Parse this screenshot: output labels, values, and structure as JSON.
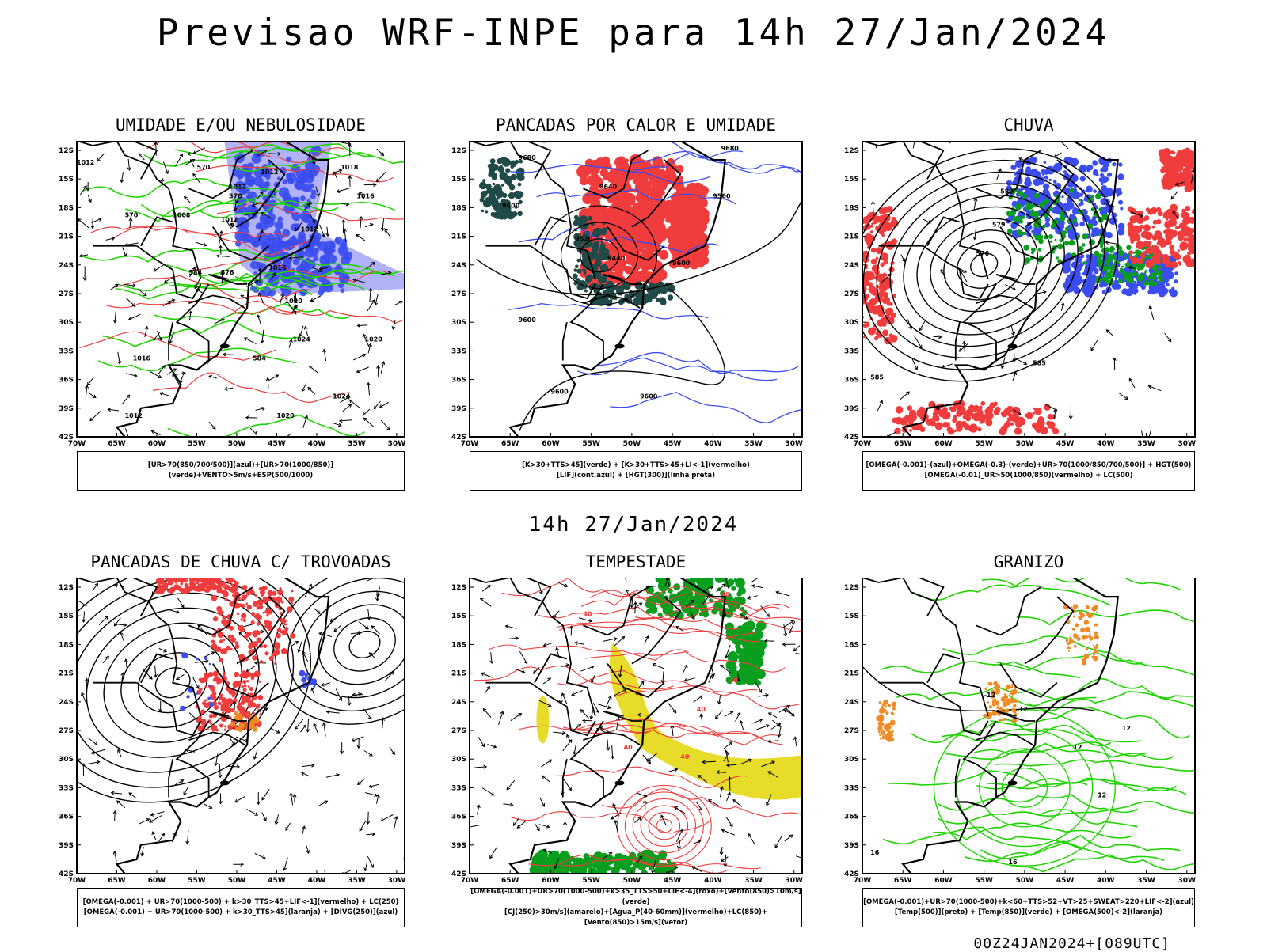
{
  "title": "Previsao WRF-INPE  para 14h 27/Jan/2024",
  "middle_date": "14h 27/Jan/2024",
  "footer": "00Z24JAN2024+[089UTC]",
  "axes": {
    "lat_labels": [
      "12S",
      "15S",
      "18S",
      "21S",
      "24S",
      "27S",
      "30S",
      "33S",
      "36S",
      "39S",
      "42S"
    ],
    "lon_labels": [
      "70W",
      "65W",
      "60W",
      "55W",
      "50W",
      "45W",
      "40W",
      "35W",
      "30W"
    ]
  },
  "colors": {
    "blue": "#3b4cf0",
    "light_blue": "#a9aaf6",
    "green": "#1fd400",
    "dark_green": "#0a9e1e",
    "red": "#f03c3c",
    "dark_teal": "#1f4a48",
    "yellow": "#e8dc2a",
    "orange": "#f08a24",
    "black": "#000000"
  },
  "panels": [
    {
      "title": "UMIDADE E/OU NEBULOSIDADE",
      "legend": [
        "[UR>70(850/700/500)](azul)+[UR>70(1000/850)](verde)+VENTO>5m/s+ESP(500/1000)"
      ],
      "labels": [
        "1012",
        "1012",
        "1012",
        "1008",
        "1012",
        "1018",
        "1016",
        "1012",
        "1016",
        "1020",
        "1024",
        "1016",
        "1012",
        "1020",
        "1024",
        "1020",
        "570",
        "570",
        "576",
        "584",
        "570",
        "584"
      ]
    },
    {
      "title": "PANCADAS POR CALOR E UMIDADE",
      "legend": [
        "[K>30+TTS>45](verde) + [K>30+TTS>45+LI<-1](vermelho)",
        "[LIF](cont.azul) + [HGT(300)](linha preta)"
      ],
      "labels": [
        "9680",
        "9680",
        "9640",
        "9600",
        "9560",
        "9520",
        "9440",
        "9600",
        "9600",
        "9600",
        "9600"
      ]
    },
    {
      "title": "CHUVA",
      "legend": [
        "[OMEGA(-0.001)-(azul)+OMEGA(-0.3)-(verde)+UR>70(1000/850/700/500)] + HGT(500)",
        "[OMEGA(-0.01)_UR>50(1000/850)(vermelho) + LC(500)"
      ],
      "labels": [
        "582",
        "579",
        "576",
        "585",
        "585"
      ]
    },
    {
      "title": "PANCADAS DE CHUVA C/ TROVOADAS",
      "legend": [
        "[OMEGA(-0.001) + UR>70(1000-500) + k>30_TTS>45+LIF<-1](vermelho) + LC(250)",
        "[OMEGA(-0.001) + UR>70(1000-500) + k>30_TTS>45](laranja) + [DIVG(250)](azul)"
      ],
      "labels": []
    },
    {
      "title": "TEMPESTADE",
      "legend": [
        "[OMEGA(-0.001)+UR>70(1000-500)+k>35_TTS>50+LIF<-4](roxo)+[Vento(850)>10m/s](verde)",
        "[CJ(250)>30m/s](amarelo)+[Agua_P(40-60mm)](vermelho)+LC(850)+[Vento(850)>15m/s](vetor)"
      ],
      "labels": [
        "40",
        "40",
        "40",
        "40",
        "40",
        "40"
      ]
    },
    {
      "title": "GRANIZO",
      "legend": [
        "[OMEGA(-0.001)+UR>70(1000-500)+k<60+TTS>52+VT>25+SWEAT>220+LIF<-2](azul)",
        "[Temp(500)](preto) + [Temp(850)](verde) + [OMEGA(500)<-2](laranja)"
      ],
      "labels": [
        "-12",
        "-12",
        "16",
        "16",
        "12",
        "12",
        "12"
      ]
    }
  ]
}
